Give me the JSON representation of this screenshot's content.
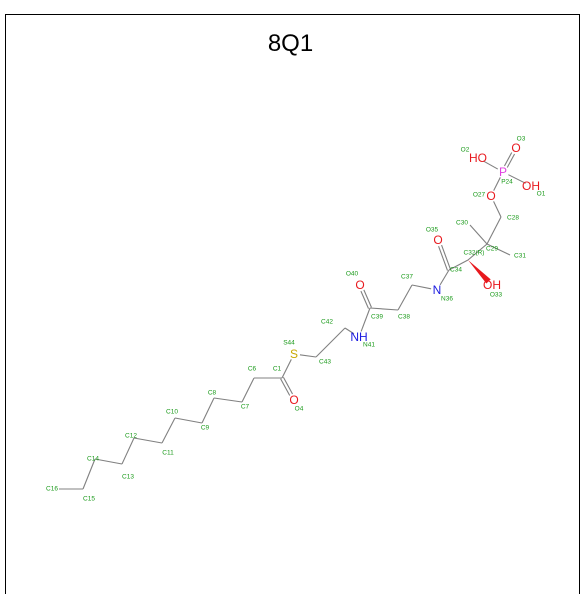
{
  "title": "8Q1",
  "colors": {
    "carbon_label": "#1a9a1a",
    "oxygen": "#e8191e",
    "nitrogen": "#1a1ae0",
    "sulfur": "#c8a800",
    "phosphorus": "#e040e0",
    "bond": "#808080",
    "wedge": "#e8191e"
  },
  "atom_symbols": {
    "O2": "HO",
    "O3": "O",
    "O1": "OH",
    "P24": "P",
    "O27": "O",
    "O33": "OH",
    "O35": "O",
    "N36": "N",
    "O40": "O",
    "N41": "NH",
    "S44": "S",
    "O4": "O"
  },
  "atom_labels": {
    "O3": "O3",
    "O2": "O2",
    "P24": "P24",
    "O1": "O1",
    "O27": "O27",
    "C28": "C28",
    "C30": "C30",
    "C29": "C29",
    "C31": "C31",
    "O35": "O35",
    "C32": "C32(R)",
    "O33": "O33",
    "C34": "C34",
    "N36": "N36",
    "C37": "C37",
    "C38": "C38",
    "O40": "O40",
    "C39": "C39",
    "C42": "C42",
    "N41": "N41",
    "C43": "C43",
    "S44": "S44",
    "C1": "C1",
    "O4": "O4",
    "C6": "C6",
    "C7": "C7",
    "C8": "C8",
    "C9": "C9",
    "C10": "C10",
    "C11": "C11",
    "C12": "C12",
    "C13": "C13",
    "C14": "C14",
    "C15": "C15",
    "C16": "C16"
  }
}
